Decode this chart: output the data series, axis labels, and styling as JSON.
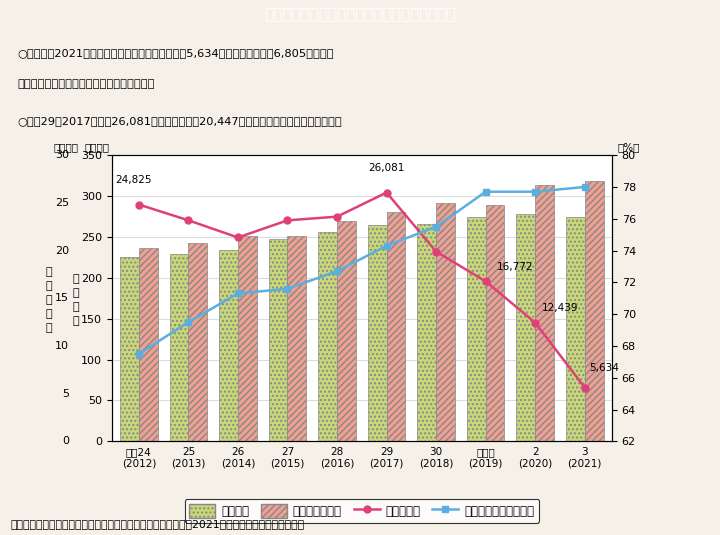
{
  "title": "９－３図　保育の申込者数、待機児童数の状況",
  "subtitle_lines": [
    "○令和３（2021）年４月１日時点の待機児童数は5,634人で、前年に比べ6,805人減少。",
    "　待機児童数は、４年連続で最少となった。",
    "○平成29（2017）年の26,081人から４年間で20,447人減少し、約５分の１になった。"
  ],
  "footnote": "（備考）厚生労働省「保育所等利用待機児童数調査（令和３（2021）年４月１日）」より作成。",
  "years_label": [
    "平成24\n(2012)",
    "25\n(2013)",
    "26\n(2014)",
    "27\n(2015)",
    "28\n(2016)",
    "29\n(2017)",
    "30\n(2018)",
    "令和元\n(2019)",
    "2\n(2020)",
    "3\n(2021)"
  ],
  "shinseisha": [
    225,
    229,
    234,
    247,
    256,
    265,
    266,
    274,
    278,
    274
  ],
  "ukesara": [
    237,
    243,
    251,
    251,
    270,
    281,
    291,
    289,
    313,
    318
  ],
  "taiki": [
    24825,
    23167,
    21371,
    23167,
    23553,
    26081,
    19895,
    16772,
    12439,
    5634
  ],
  "joshi_koyo": [
    67.5,
    69.5,
    71.3,
    71.6,
    72.7,
    74.3,
    75.5,
    77.7,
    77.7,
    78.0
  ],
  "taiki_annotations": {
    "0": "24,825",
    "5": "26,081",
    "7": "16,772",
    "8": "12,439",
    "9": "5,634"
  },
  "ylim_bar": [
    0,
    350
  ],
  "ylim_taiki": [
    0,
    30
  ],
  "ylim_right": [
    62,
    80
  ],
  "yticks_bar": [
    0,
    50,
    100,
    150,
    200,
    250,
    300,
    350
  ],
  "yticks_taiki": [
    0,
    5,
    10,
    15,
    20,
    25,
    30
  ],
  "yticks_right": [
    62,
    64,
    66,
    68,
    70,
    72,
    74,
    76,
    78,
    80
  ],
  "bar_color_shinseisha": "#c8d878",
  "bar_color_ukesara": "#f0a090",
  "line_color_taiki": "#e0407a",
  "line_color_joshi": "#5aafe0",
  "bg_color": "#f5f0e8",
  "header_bg": "#20bcd0",
  "header_text_color": "#ffffff",
  "legend_labels": [
    "申込者数",
    "保育の受け皿量",
    "待機児童数",
    "女性就業率（右目盛）"
  ],
  "bar_width": 0.38
}
